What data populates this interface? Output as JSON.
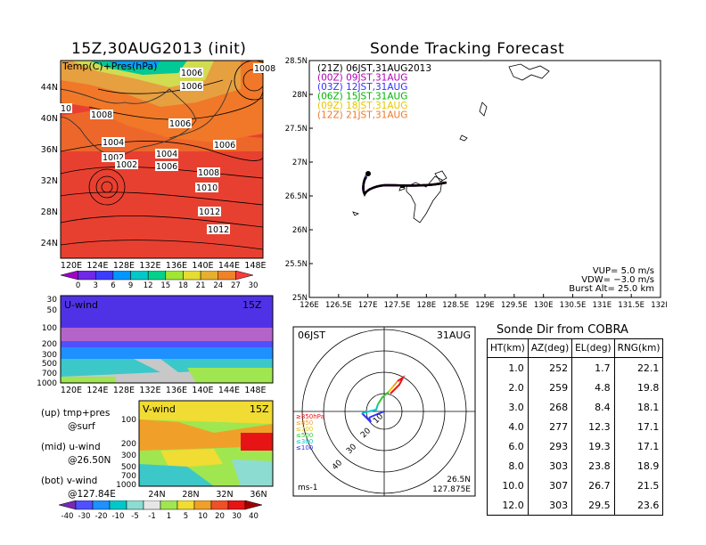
{
  "map_panel": {
    "title": "15Z,30AUG2013 (init)",
    "label": "Temp(C)+Pres(hPa)",
    "xticks": [
      "120E",
      "124E",
      "128E",
      "132E",
      "136E",
      "140E",
      "144E",
      "148E"
    ],
    "yticks": [
      "24N",
      "28N",
      "32N",
      "36N",
      "40N",
      "44N"
    ],
    "isobar_labels": [
      "1006",
      "1006",
      "1008",
      "1006",
      "1004",
      "1002",
      "1004",
      "1002",
      "1006",
      "1006",
      "1008",
      "1010",
      "1012",
      "1012",
      "1008",
      "10"
    ],
    "colorbar_labels": [
      "0",
      "3",
      "6",
      "9",
      "12",
      "15",
      "18",
      "21",
      "24",
      "27",
      "30"
    ],
    "colorbar_colors": [
      "#a000c8",
      "#6e28e6",
      "#3c3cff",
      "#0096ff",
      "#00c8c8",
      "#00d28c",
      "#a0e632",
      "#e6dc32",
      "#e6af2d",
      "#f08228",
      "#fa3c3c"
    ]
  },
  "u_panel": {
    "label": "U-wind",
    "time": "15Z",
    "yticks": [
      "30",
      "50",
      "100",
      "200",
      "300",
      "500",
      "700",
      "1000"
    ],
    "xticks": [
      "120E",
      "124E",
      "128E",
      "132E",
      "136E",
      "140E",
      "144E",
      "148E"
    ]
  },
  "v_panel": {
    "label": "V-wind",
    "time": "15Z",
    "yticks": [
      "100",
      "200",
      "300",
      "500",
      "700",
      "1000"
    ],
    "xticks": [
      "24N",
      "28N",
      "32N",
      "36N"
    ]
  },
  "wind_colorbar": {
    "labels": [
      "-40",
      "-30",
      "-20",
      "-10",
      "-5",
      "-1",
      "1",
      "5",
      "10",
      "20",
      "30",
      "40"
    ],
    "colors": [
      "#7828b4",
      "#5050ff",
      "#1e90ff",
      "#00c8c8",
      "#8cdcd2",
      "#e6e6e6",
      "#a0e650",
      "#f0dc32",
      "#f0a028",
      "#f05028",
      "#e61414",
      "#a00000"
    ]
  },
  "notes": [
    "(up) tmp+pres",
    "@surf",
    "(mid) u-wind",
    "@26.50N",
    "(bot) v-wind",
    "@127.84E"
  ],
  "tracking": {
    "title": "Sonde Tracking Forecast",
    "legend": [
      {
        "text": "(21Z)  06JST,31AUG2013",
        "color": "#000000"
      },
      {
        "text": "(00Z)  09JST,31AUG",
        "color": "#b400b4"
      },
      {
        "text": "(03Z)  12JST,31AUG",
        "color": "#3232ff"
      },
      {
        "text": "(06Z)  15JST,31AUG",
        "color": "#00b400"
      },
      {
        "text": "(09Z)  18JST,31AUG",
        "color": "#e6c800"
      },
      {
        "text": "(12Z)  21JST,31AUG",
        "color": "#f07828"
      }
    ],
    "xticks": [
      "126E",
      "126.5E",
      "127E",
      "127.5E",
      "128E",
      "128.5E",
      "129E",
      "129.5E",
      "130E",
      "130.5E",
      "131E",
      "131.5E",
      "132E"
    ],
    "yticks": [
      "25N",
      "25.5N",
      "26N",
      "26.5N",
      "27N",
      "27.5N",
      "28N",
      "28.5N"
    ],
    "vup": "VUP=  5.0  m/s",
    "vdw": "VDW= −3.0  m/s",
    "burst": "Burst Alt=  25.0  km"
  },
  "polar": {
    "time": "06JST",
    "date": "31AUG",
    "ring_labels": [
      "10",
      "20",
      "30",
      "40"
    ],
    "level_legend": [
      {
        "text": "≥850hPa",
        "color": "#e61414"
      },
      {
        "text": "≤850",
        "color": "#f0a028"
      },
      {
        "text": "≤700",
        "color": "#e6c800"
      },
      {
        "text": "≤500",
        "color": "#32c832"
      },
      {
        "text": "≤300",
        "color": "#00c8c8"
      },
      {
        "text": "≤100",
        "color": "#3232ff"
      }
    ],
    "unit": "ms-1",
    "lat": "26.5N",
    "lon": "127.875E"
  },
  "sonde_dir": {
    "title": "Sonde Dir from COBRA",
    "columns": [
      "HT(km)",
      "AZ(deg)",
      "EL(deg)",
      "RNG(km)"
    ],
    "rows": [
      [
        "1.0",
        "252",
        "1.7",
        "22.1"
      ],
      [
        "2.0",
        "259",
        "4.8",
        "19.8"
      ],
      [
        "3.0",
        "268",
        "8.4",
        "18.1"
      ],
      [
        "4.0",
        "277",
        "12.3",
        "17.1"
      ],
      [
        "6.0",
        "293",
        "19.3",
        "17.1"
      ],
      [
        "8.0",
        "303",
        "23.8",
        "18.9"
      ],
      [
        "10.0",
        "307",
        "26.7",
        "21.5"
      ],
      [
        "12.0",
        "303",
        "29.5",
        "23.6"
      ]
    ]
  }
}
